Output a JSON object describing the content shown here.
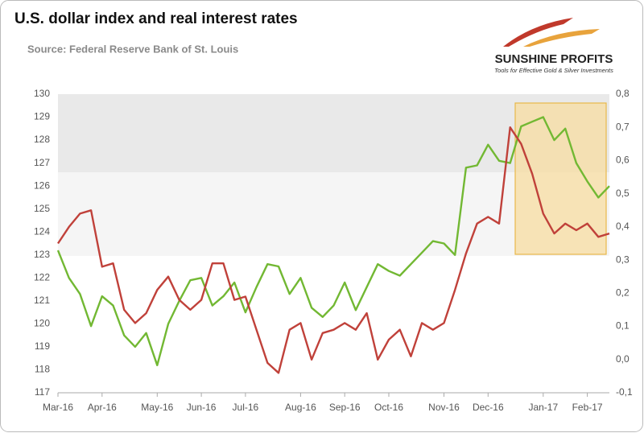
{
  "chart_data": {
    "type": "line",
    "title": "U.S. dollar index and real interest rates",
    "subtitle": "Source: Federal Reserve Bank of St. Louis",
    "logo": {
      "name": "SUNSHINE PROFITS",
      "tagline": "Tools for Effective Gold & Silver Investments"
    },
    "categories": [
      "Mar-16",
      null,
      null,
      null,
      "Apr-16",
      null,
      null,
      null,
      null,
      "May-16",
      null,
      null,
      null,
      "Jun-16",
      null,
      null,
      null,
      "Jul-16",
      null,
      null,
      null,
      null,
      "Aug-16",
      null,
      null,
      null,
      "Sep-16",
      null,
      null,
      null,
      "Oct-16",
      null,
      null,
      null,
      null,
      "Nov-16",
      null,
      null,
      null,
      "Dec-16",
      null,
      null,
      null,
      null,
      "Jan-17",
      null,
      null,
      null,
      "Feb-17",
      null,
      null
    ],
    "series": [
      {
        "color": "#72b833",
        "axis": "y",
        "values": [
          123.2,
          122.0,
          121.3,
          119.9,
          121.2,
          120.8,
          119.5,
          119.0,
          119.6,
          118.2,
          120.0,
          121.0,
          121.9,
          122.0,
          120.8,
          121.2,
          121.8,
          120.5,
          121.6,
          122.6,
          122.5,
          121.3,
          122.0,
          120.7,
          120.3,
          120.8,
          121.8,
          120.6,
          121.6,
          122.6,
          122.3,
          122.1,
          122.6,
          123.1,
          123.6,
          123.5,
          123.0,
          126.8,
          126.9,
          127.8,
          127.1,
          127.0,
          128.6,
          128.8,
          129.0,
          128.0,
          128.5,
          127.0,
          126.2,
          125.5,
          126.0
        ]
      },
      {
        "color": "#c0413a",
        "axis": "y2",
        "values": [
          0.35,
          0.4,
          0.44,
          0.45,
          0.28,
          0.29,
          0.15,
          0.11,
          0.14,
          0.21,
          0.25,
          0.18,
          0.15,
          0.18,
          0.29,
          0.29,
          0.18,
          0.19,
          0.09,
          -0.01,
          -0.04,
          0.09,
          0.11,
          0.0,
          0.08,
          0.09,
          0.11,
          0.09,
          0.14,
          0.0,
          0.06,
          0.09,
          0.01,
          0.11,
          0.09,
          0.11,
          0.21,
          0.32,
          0.41,
          0.43,
          0.41,
          0.7,
          0.65,
          0.56,
          0.44,
          0.38,
          0.41,
          0.39,
          0.41,
          0.37,
          0.38
        ]
      }
    ],
    "ylim": [
      117,
      130
    ],
    "yticks": [
      117,
      118,
      119,
      120,
      121,
      122,
      123,
      124,
      125,
      126,
      127,
      128,
      129,
      130
    ],
    "y2lim": [
      -0.1,
      0.8
    ],
    "y2ticks": [
      {
        "value": -0.1,
        "label": "-0,1"
      },
      {
        "value": 0.0,
        "label": "0,0"
      },
      {
        "value": 0.1,
        "label": "0,1"
      },
      {
        "value": 0.2,
        "label": "0,2"
      },
      {
        "value": 0.3,
        "label": "0,3"
      },
      {
        "value": 0.4,
        "label": "0,4"
      },
      {
        "value": 0.5,
        "label": "0,5"
      },
      {
        "value": 0.6,
        "label": "0,6"
      },
      {
        "value": 0.7,
        "label": "0,7"
      },
      {
        "value": 0.8,
        "label": "0,8"
      }
    ],
    "grid": false
  }
}
